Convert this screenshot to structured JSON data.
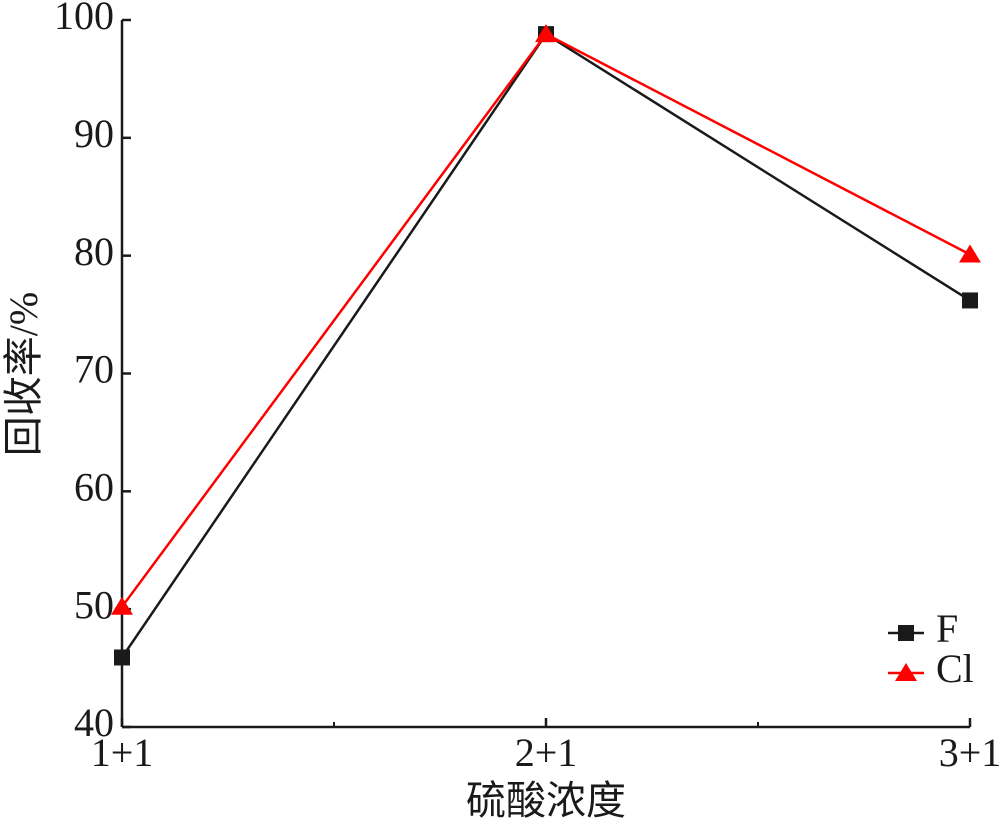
{
  "chart_data": {
    "type": "line",
    "x_label": "硫酸浓度",
    "y_label": "回收率/%",
    "categories": [
      "1+1",
      "2+1",
      "3+1"
    ],
    "series": [
      {
        "name": "F",
        "color": "#1a1a1a",
        "marker": "square",
        "values": [
          45.9,
          98.8,
          76.2
        ]
      },
      {
        "name": "Cl",
        "color": "#ff0000",
        "marker": "triangle",
        "values": [
          50.2,
          98.8,
          80.1
        ]
      }
    ],
    "ylim": [
      40,
      100
    ],
    "yticks": [
      40,
      50,
      60,
      70,
      80,
      90,
      100
    ],
    "legend": "lower right",
    "grid": false
  }
}
